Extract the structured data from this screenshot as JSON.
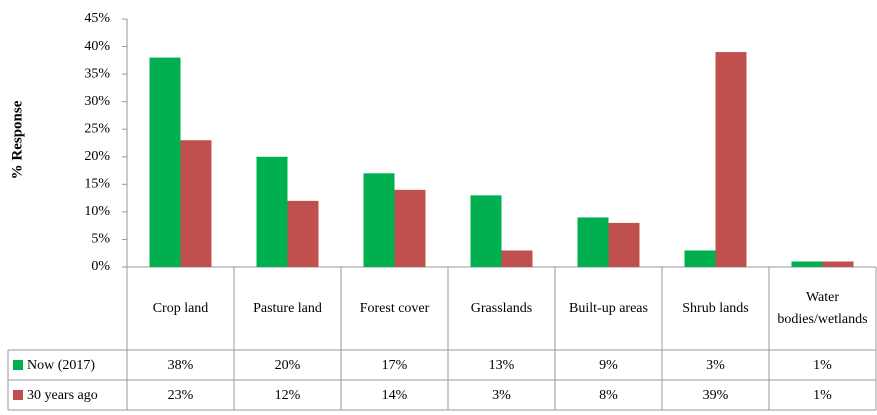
{
  "chart_data": {
    "type": "bar",
    "y_label": "% Response",
    "categories": [
      "Crop land",
      "Pasture land",
      "Forest cover",
      "Grasslands",
      "Built-up areas",
      "Shrub lands",
      "Water bodies/wetlands"
    ],
    "series": [
      {
        "name": "Now (2017)",
        "color": "#00b050",
        "values": [
          38,
          20,
          17,
          13,
          9,
          3,
          1
        ],
        "value_labels": [
          "38%",
          "20%",
          "17%",
          "13%",
          "9%",
          "3%",
          "1%"
        ]
      },
      {
        "name": "30 years ago",
        "color": "#c0504d",
        "values": [
          23,
          12,
          14,
          3,
          8,
          39,
          1
        ],
        "value_labels": [
          "23%",
          "12%",
          "14%",
          "3%",
          "8%",
          "39%",
          "1%"
        ]
      }
    ],
    "ylim": [
      0,
      45
    ],
    "yticks": [
      {
        "value": 0,
        "label": "0%"
      },
      {
        "value": 5,
        "label": "5%"
      },
      {
        "value": 10,
        "label": "10%"
      },
      {
        "value": 15,
        "label": "15%"
      },
      {
        "value": 20,
        "label": "20%"
      },
      {
        "value": 25,
        "label": "25%"
      },
      {
        "value": 30,
        "label": "30%"
      },
      {
        "value": 35,
        "label": "35%"
      },
      {
        "value": 40,
        "label": "40%"
      },
      {
        "value": 45,
        "label": "45%"
      }
    ],
    "grid": false
  }
}
